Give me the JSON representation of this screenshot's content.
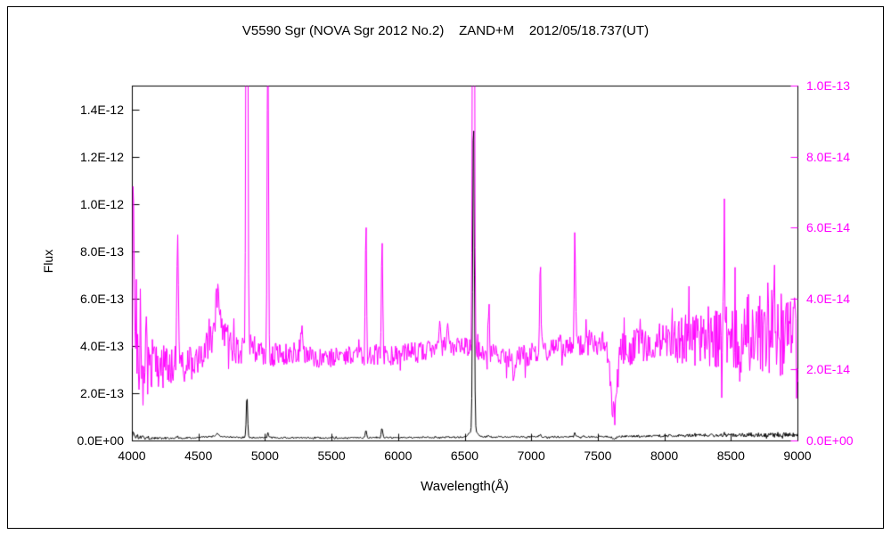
{
  "chart_data": {
    "type": "line",
    "title": "V5590 Sgr (NOVA Sgr 2012 No.2)    ZAND+M    2012/05/18.737(UT)",
    "xlabel": "Wavelength(Å)",
    "ylabel": "Flux",
    "grid": "off",
    "legend": "off",
    "x_axis": {
      "min": 4000,
      "max": 9000,
      "ticks": [
        {
          "label": "4000",
          "value": 4000
        },
        {
          "label": "4500",
          "value": 4500
        },
        {
          "label": "5000",
          "value": 5000
        },
        {
          "label": "5500",
          "value": 5500
        },
        {
          "label": "6000",
          "value": 6000
        },
        {
          "label": "6500",
          "value": 6500
        },
        {
          "label": "7000",
          "value": 7000
        },
        {
          "label": "7500",
          "value": 7500
        },
        {
          "label": "8000",
          "value": 8000
        },
        {
          "label": "8500",
          "value": 8500
        },
        {
          "label": "9000",
          "value": 9000
        }
      ]
    },
    "left_axis": {
      "min": 0,
      "max": 1.5e-12,
      "color": "#000000",
      "ticks": [
        {
          "label": "0.0E+00",
          "value": 0
        },
        {
          "label": "2.0E-13",
          "value": 2e-13
        },
        {
          "label": "4.0E-13",
          "value": 4e-13
        },
        {
          "label": "6.0E-13",
          "value": 6e-13
        },
        {
          "label": "8.0E-13",
          "value": 8e-13
        },
        {
          "label": "1.0E-12",
          "value": 1e-12
        },
        {
          "label": "1.2E-12",
          "value": 1.2e-12
        },
        {
          "label": "1.4E-12",
          "value": 1.4e-12
        }
      ]
    },
    "right_axis": {
      "min": 0,
      "max": 1e-13,
      "color": "#ff00ff",
      "ticks": [
        {
          "label": "0.0E+00",
          "value": 0
        },
        {
          "label": "2.0E-14",
          "value": 2e-14
        },
        {
          "label": "4.0E-14",
          "value": 4e-14
        },
        {
          "label": "6.0E-14",
          "value": 6e-14
        },
        {
          "label": "8.0E-14",
          "value": 8e-14
        },
        {
          "label": "1.0E-13",
          "value": 1e-13
        }
      ]
    },
    "series": [
      {
        "name": "spectrum-black-left-axis",
        "color": "#000000",
        "axis": "left",
        "continuum": [
          [
            4000,
            2e-14
          ],
          [
            4150,
            1.2e-14
          ],
          [
            4400,
            1.3e-14
          ],
          [
            4600,
            1.8e-14
          ],
          [
            4800,
            1.5e-14
          ],
          [
            5000,
            1.4e-14
          ],
          [
            5500,
            1.3e-14
          ],
          [
            6000,
            1.4e-14
          ],
          [
            6500,
            1.6e-14
          ],
          [
            7000,
            1.7e-14
          ],
          [
            7500,
            1.8e-14
          ],
          [
            8000,
            2.2e-14
          ],
          [
            8500,
            2.5e-14
          ],
          [
            9000,
            2.8e-14
          ]
        ],
        "lines": [
          [
            4008,
            2e-14,
            4
          ],
          [
            4340,
            6e-15,
            5
          ],
          [
            4640,
            1.4e-14,
            12
          ],
          [
            4861,
            1.8e-13,
            5
          ],
          [
            5018,
            2e-14,
            5
          ],
          [
            5755,
            3.5e-14,
            5
          ],
          [
            5876,
            4e-14,
            5
          ],
          [
            6563,
            1.36e-12,
            6
          ],
          [
            6563,
            3e-14,
            28
          ],
          [
            6678,
            8e-15,
            5
          ],
          [
            7065,
            1.2e-14,
            5
          ],
          [
            7325,
            1.6e-14,
            5
          ],
          [
            7620,
            -9e-15,
            18
          ],
          [
            8446,
            8e-15,
            5
          ]
        ],
        "noise": [
          [
            4000,
            1.2e-14
          ],
          [
            4200,
            5e-15
          ],
          [
            4500,
            3.5e-15
          ],
          [
            5000,
            3e-15
          ],
          [
            6000,
            3e-15
          ],
          [
            7000,
            3.5e-15
          ],
          [
            7700,
            4e-15
          ],
          [
            8200,
            6e-15
          ],
          [
            8600,
            9e-15
          ],
          [
            9000,
            1.1e-14
          ]
        ]
      },
      {
        "name": "spectrum-magenta-right-axis",
        "color": "#ff00ff",
        "axis": "right",
        "continuum": [
          [
            4000,
            2.6e-14
          ],
          [
            4080,
            2e-14
          ],
          [
            4200,
            2.1e-14
          ],
          [
            4450,
            2.2e-14
          ],
          [
            4580,
            2.8e-14
          ],
          [
            4650,
            3.4e-14
          ],
          [
            4700,
            3e-14
          ],
          [
            4780,
            2.5e-14
          ],
          [
            4900,
            2.6e-14
          ],
          [
            5050,
            2.4e-14
          ],
          [
            5250,
            2.5e-14
          ],
          [
            5450,
            2.3e-14
          ],
          [
            5650,
            2.4e-14
          ],
          [
            5950,
            2.4e-14
          ],
          [
            6250,
            2.6e-14
          ],
          [
            6450,
            2.7e-14
          ],
          [
            6650,
            2.5e-14
          ],
          [
            6850,
            2.3e-14
          ],
          [
            7050,
            2.5e-14
          ],
          [
            7250,
            2.7e-14
          ],
          [
            7500,
            2.8e-14
          ],
          [
            7700,
            2.6e-14
          ],
          [
            8000,
            2.8e-14
          ],
          [
            8250,
            2.9e-14
          ],
          [
            8500,
            3e-14
          ],
          [
            8750,
            3.1e-14
          ],
          [
            9000,
            2.9e-14
          ]
        ],
        "lines": [
          [
            4008,
            4.5e-14,
            4
          ],
          [
            4101,
            1.6e-14,
            5
          ],
          [
            4340,
            3.4e-14,
            6
          ],
          [
            4640,
            1e-14,
            12
          ],
          [
            4861,
            2.2e-13,
            6
          ],
          [
            5018,
            9.5e-14,
            5
          ],
          [
            5270,
            8e-15,
            7
          ],
          [
            5755,
            3.8e-14,
            5
          ],
          [
            5876,
            3.5e-14,
            5
          ],
          [
            6310,
            7e-15,
            6
          ],
          [
            6365,
            6e-15,
            6
          ],
          [
            6563,
            2.5e-13,
            6
          ],
          [
            6678,
            1.5e-14,
            5
          ],
          [
            6870,
            -5e-15,
            10
          ],
          [
            7065,
            2.4e-14,
            5
          ],
          [
            7325,
            3.1e-14,
            5
          ],
          [
            7620,
            -2e-14,
            22
          ],
          [
            8446,
            3.2e-14,
            5
          ]
        ],
        "noise": [
          [
            4000,
            1.3e-14
          ],
          [
            4120,
            9e-15
          ],
          [
            4300,
            5.5e-15
          ],
          [
            4700,
            4.5e-15
          ],
          [
            5200,
            3e-15
          ],
          [
            6000,
            2.8e-15
          ],
          [
            6800,
            3e-15
          ],
          [
            7400,
            3.5e-15
          ],
          [
            7650,
            4.5e-15
          ],
          [
            8000,
            6e-15
          ],
          [
            8300,
            8.5e-15
          ],
          [
            8600,
            1.15e-14
          ],
          [
            9000,
            1.2e-14
          ]
        ]
      }
    ]
  }
}
